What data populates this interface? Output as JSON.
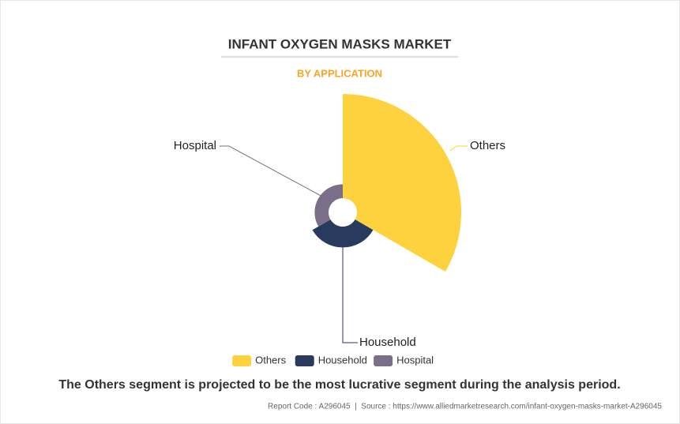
{
  "chart_data": {
    "type": "rose",
    "title": "INFANT OXYGEN MASKS MARKET",
    "subtitle": "BY APPLICATION",
    "categories": [
      "Others",
      "Household",
      "Hospital"
    ],
    "values": [
      75,
      15,
      10
    ],
    "colors": [
      "#fdd23e",
      "#283a5e",
      "#7a6e88"
    ],
    "annotation": "The Others segment is projected to be the most lucrative segment during the analysis period.",
    "footer": "Report Code : A296045  |  Source : https://www.alliedmarketresearch.com/infant-oxygen-masks-market-A296045"
  }
}
